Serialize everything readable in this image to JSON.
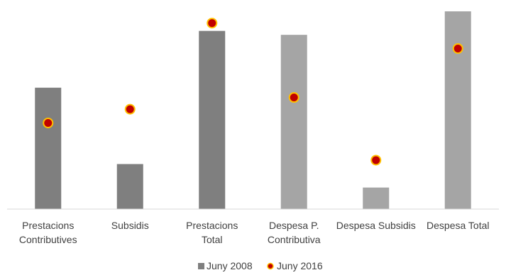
{
  "chart_data": {
    "type": "bar",
    "categories": [
      [
        "Prestacions",
        "Contributives"
      ],
      [
        "Subsidis"
      ],
      [
        "Prestacions",
        "Total"
      ],
      [
        "Despesa P.",
        "Contributiva"
      ],
      [
        "Despesa Subsidis"
      ],
      [
        "Despesa Total"
      ]
    ],
    "series": [
      {
        "name": "Juny 2008",
        "kind": "bar",
        "values": [
          62,
          23,
          91,
          89,
          11,
          101
        ]
      },
      {
        "name": "Juny 2016",
        "kind": "marker",
        "values": [
          44,
          51,
          95,
          57,
          25,
          82
        ]
      }
    ],
    "ylim": [
      0,
      101
    ],
    "grid": false,
    "legend_position": "bottom",
    "colors": {
      "bar_group_1": "#7f7f7f",
      "bar_group_2": "#a5a5a5",
      "marker_fill": "#c00000",
      "marker_stroke": "#ffc000",
      "axis": "#d9d9d9",
      "text": "#404040"
    }
  }
}
